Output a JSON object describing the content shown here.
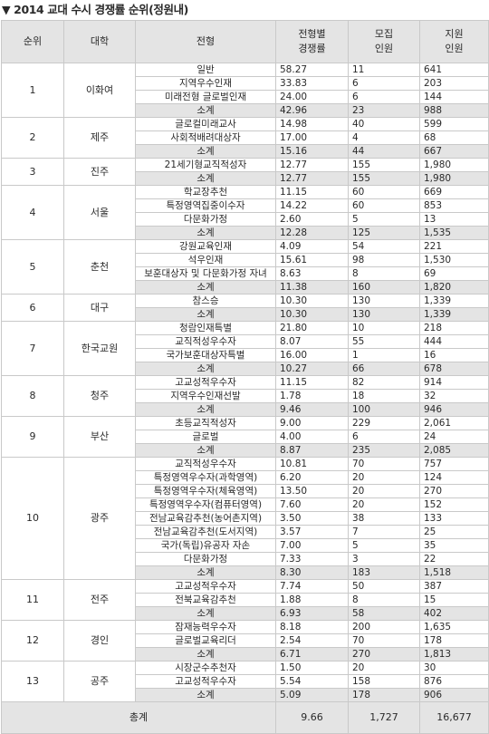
{
  "title": "▼ 2014 교대 수시 경쟁률 순위(정원내)",
  "headers": {
    "rank": "순위",
    "university": "대학",
    "type": "전형",
    "rate": [
      "전형별",
      "경쟁률"
    ],
    "quota": [
      "모집",
      "인원"
    ],
    "applicants": [
      "지원",
      "인원"
    ]
  },
  "groups": [
    {
      "rank": "1",
      "university": "이화여",
      "rows": [
        {
          "type": "일반",
          "rate": "58.27",
          "quota": "11",
          "applicants": "641"
        },
        {
          "type": "지역우수인재",
          "rate": "33.83",
          "quota": "6",
          "applicants": "203"
        },
        {
          "type": "미래전형 글로벌인재",
          "rate": "24.00",
          "quota": "6",
          "applicants": "144"
        },
        {
          "type": "소계",
          "rate": "42.96",
          "quota": "23",
          "applicants": "988"
        }
      ]
    },
    {
      "rank": "2",
      "university": "제주",
      "rows": [
        {
          "type": "글로컬미래교사",
          "rate": "14.98",
          "quota": "40",
          "applicants": "599"
        },
        {
          "type": "사회적배려대상자",
          "rate": "17.00",
          "quota": "4",
          "applicants": "68"
        },
        {
          "type": "소계",
          "rate": "15.16",
          "quota": "44",
          "applicants": "667"
        }
      ]
    },
    {
      "rank": "3",
      "university": "진주",
      "rows": [
        {
          "type": "21세기형교직적성자",
          "rate": "12.77",
          "quota": "155",
          "applicants": "1,980"
        },
        {
          "type": "소계",
          "rate": "12.77",
          "quota": "155",
          "applicants": "1,980"
        }
      ]
    },
    {
      "rank": "4",
      "university": "서울",
      "rows": [
        {
          "type": "학교장추천",
          "rate": "11.15",
          "quota": "60",
          "applicants": "669"
        },
        {
          "type": "특정영역집중이수자",
          "rate": "14.22",
          "quota": "60",
          "applicants": "853"
        },
        {
          "type": "다문화가정",
          "rate": "2.60",
          "quota": "5",
          "applicants": "13"
        },
        {
          "type": "소계",
          "rate": "12.28",
          "quota": "125",
          "applicants": "1,535"
        }
      ]
    },
    {
      "rank": "5",
      "university": "춘천",
      "rows": [
        {
          "type": "강원교육인재",
          "rate": "4.09",
          "quota": "54",
          "applicants": "221"
        },
        {
          "type": "석우인재",
          "rate": "15.61",
          "quota": "98",
          "applicants": "1,530"
        },
        {
          "type": "보훈대상자 및 다문화가정 자녀",
          "rate": "8.63",
          "quota": "8",
          "applicants": "69"
        },
        {
          "type": "소계",
          "rate": "11.38",
          "quota": "160",
          "applicants": "1,820"
        }
      ]
    },
    {
      "rank": "6",
      "university": "대구",
      "rows": [
        {
          "type": "참스승",
          "rate": "10.30",
          "quota": "130",
          "applicants": "1,339"
        },
        {
          "type": "소계",
          "rate": "10.30",
          "quota": "130",
          "applicants": "1,339"
        }
      ]
    },
    {
      "rank": "7",
      "university": "한국교원",
      "rows": [
        {
          "type": "청람인재특별",
          "rate": "21.80",
          "quota": "10",
          "applicants": "218"
        },
        {
          "type": "교직적성우수자",
          "rate": "8.07",
          "quota": "55",
          "applicants": "444"
        },
        {
          "type": "국가보훈대상자특별",
          "rate": "16.00",
          "quota": "1",
          "applicants": "16"
        },
        {
          "type": "소계",
          "rate": "10.27",
          "quota": "66",
          "applicants": "678"
        }
      ]
    },
    {
      "rank": "8",
      "university": "청주",
      "rows": [
        {
          "type": "고교성적우수자",
          "rate": "11.15",
          "quota": "82",
          "applicants": "914"
        },
        {
          "type": "지역우수인재선발",
          "rate": "1.78",
          "quota": "18",
          "applicants": "32"
        },
        {
          "type": "소계",
          "rate": "9.46",
          "quota": "100",
          "applicants": "946"
        }
      ]
    },
    {
      "rank": "9",
      "university": "부산",
      "rows": [
        {
          "type": "초등교직적성자",
          "rate": "9.00",
          "quota": "229",
          "applicants": "2,061"
        },
        {
          "type": "글로벌",
          "rate": "4.00",
          "quota": "6",
          "applicants": "24"
        },
        {
          "type": "소계",
          "rate": "8.87",
          "quota": "235",
          "applicants": "2,085"
        }
      ]
    },
    {
      "rank": "10",
      "university": "광주",
      "rows": [
        {
          "type": "교직적성우수자",
          "rate": "10.81",
          "quota": "70",
          "applicants": "757"
        },
        {
          "type": "특정영역우수자(과학영역)",
          "rate": "6.20",
          "quota": "20",
          "applicants": "124"
        },
        {
          "type": "특정영역우수자(체육영역)",
          "rate": "13.50",
          "quota": "20",
          "applicants": "270"
        },
        {
          "type": "특정영역우수자(컴퓨터영역)",
          "rate": "7.60",
          "quota": "20",
          "applicants": "152"
        },
        {
          "type": "전남교육감추천(농어촌지역)",
          "rate": "3.50",
          "quota": "38",
          "applicants": "133"
        },
        {
          "type": "전남교육감추천(도서지역)",
          "rate": "3.57",
          "quota": "7",
          "applicants": "25"
        },
        {
          "type": "국가(독립)유공자 자손",
          "rate": "7.00",
          "quota": "5",
          "applicants": "35"
        },
        {
          "type": "다문화가정",
          "rate": "7.33",
          "quota": "3",
          "applicants": "22"
        },
        {
          "type": "소계",
          "rate": "8.30",
          "quota": "183",
          "applicants": "1,518"
        }
      ]
    },
    {
      "rank": "11",
      "university": "전주",
      "rows": [
        {
          "type": "고교성적우수자",
          "rate": "7.74",
          "quota": "50",
          "applicants": "387"
        },
        {
          "type": "전북교육감추천",
          "rate": "1.88",
          "quota": "8",
          "applicants": "15"
        },
        {
          "type": "소계",
          "rate": "6.93",
          "quota": "58",
          "applicants": "402"
        }
      ]
    },
    {
      "rank": "12",
      "university": "경인",
      "rows": [
        {
          "type": "잠재능력우수자",
          "rate": "8.18",
          "quota": "200",
          "applicants": "1,635"
        },
        {
          "type": "글로벌교육리더",
          "rate": "2.54",
          "quota": "70",
          "applicants": "178"
        },
        {
          "type": "소계",
          "rate": "6.71",
          "quota": "270",
          "applicants": "1,813"
        }
      ]
    },
    {
      "rank": "13",
      "university": "공주",
      "rows": [
        {
          "type": "시장군수추천자",
          "rate": "1.50",
          "quota": "20",
          "applicants": "30"
        },
        {
          "type": "고교성적우수자",
          "rate": "5.54",
          "quota": "158",
          "applicants": "876"
        },
        {
          "type": "소계",
          "rate": "5.09",
          "quota": "178",
          "applicants": "906"
        }
      ]
    }
  ],
  "total": {
    "label": "총계",
    "rate": "9.66",
    "quota": "1,727",
    "applicants": "16,677"
  }
}
